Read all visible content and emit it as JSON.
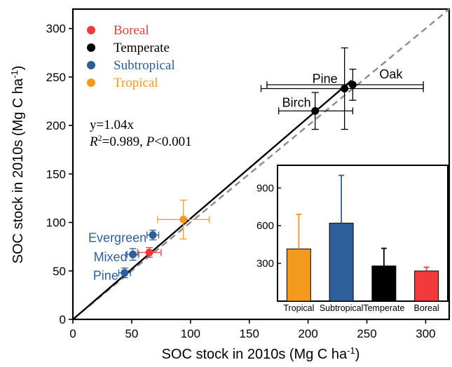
{
  "chart_data": [
    {
      "type": "scatter",
      "xlabel": "SOC stock in 2010s (Mg C ha",
      "xlabel_sup": "-1",
      "xlabel_end": ")",
      "ylabel": "SOC stock in 2010s (Mg C ha",
      "ylabel_sup": "-1",
      "ylabel_end": ")",
      "xlim": [
        0,
        320
      ],
      "ylim": [
        0,
        320
      ],
      "xticks": [
        "0",
        "50",
        "100",
        "150",
        "200",
        "250",
        "300"
      ],
      "yticks": [
        "0",
        "50",
        "100",
        "150",
        "200",
        "250",
        "300"
      ],
      "xtick_values": [
        0,
        50,
        100,
        150,
        200,
        250,
        300
      ],
      "ytick_values": [
        0,
        50,
        100,
        150,
        200,
        250,
        300
      ],
      "legend": [
        {
          "name": "Boreal",
          "color": "#f2393c"
        },
        {
          "name": "Temperate",
          "color": "#000000"
        },
        {
          "name": "Subtropical",
          "color": "#2d5f9a"
        },
        {
          "name": "Tropical",
          "color": "#f39a1e"
        }
      ],
      "fit_equation": "y=1.04x",
      "fit_r2_label": "R",
      "fit_r2_sup": "2",
      "fit_r2_value": "=0.989, ",
      "fit_p_label": "P",
      "fit_p_value": "<0.001",
      "fit_slope": 1.04,
      "fit_x_range": [
        0,
        237
      ],
      "one_to_one_line": true,
      "points": [
        {
          "group": "Temperate",
          "label": "Oak",
          "x": 238,
          "y": 242,
          "xerr_low": 165,
          "xerr_high": 298,
          "yerr_low": 226,
          "yerr_high": 258
        },
        {
          "group": "Temperate",
          "label": "Pine",
          "x": 231,
          "y": 238,
          "xerr_low": 160,
          "xerr_high": 298,
          "yerr_low": 196,
          "yerr_high": 280
        },
        {
          "group": "Temperate",
          "label": "Birch",
          "x": 206,
          "y": 215,
          "xerr_low": 175,
          "xerr_high": 238,
          "yerr_low": 196,
          "yerr_high": 234
        },
        {
          "group": "Tropical",
          "label": "",
          "x": 94,
          "y": 103,
          "xerr_low": 72,
          "xerr_high": 116,
          "yerr_low": 83,
          "yerr_high": 123
        },
        {
          "group": "Subtropical",
          "label": "Evergreen",
          "x": 68,
          "y": 87,
          "xerr_low": 63,
          "xerr_high": 73,
          "yerr_low": 82,
          "yerr_high": 92
        },
        {
          "group": "Boreal",
          "label": "",
          "x": 65,
          "y": 69,
          "xerr_low": 55,
          "xerr_high": 75,
          "yerr_low": 64,
          "yerr_high": 74
        },
        {
          "group": "Subtropical",
          "label": "Mixed",
          "x": 51,
          "y": 67,
          "xerr_low": 46,
          "xerr_high": 56,
          "yerr_low": 61,
          "yerr_high": 73
        },
        {
          "group": "Subtropical",
          "label": "Pine",
          "x": 44,
          "y": 48,
          "xerr_low": 39,
          "xerr_high": 49,
          "yerr_low": 43,
          "yerr_high": 53
        }
      ]
    },
    {
      "type": "bar",
      "inset": true,
      "categories": [
        "Tropical",
        "Subtropical",
        "Temperate",
        "Boreal"
      ],
      "values": [
        415,
        620,
        280,
        240
      ],
      "errors": [
        275,
        380,
        140,
        30
      ],
      "colors": [
        "#f39a1e",
        "#2d5f9a",
        "#000000",
        "#f2393c"
      ],
      "ylim": [
        0,
        1080
      ],
      "yticks": [
        "300",
        "600",
        "900"
      ],
      "ytick_values": [
        300,
        600,
        900
      ]
    }
  ]
}
